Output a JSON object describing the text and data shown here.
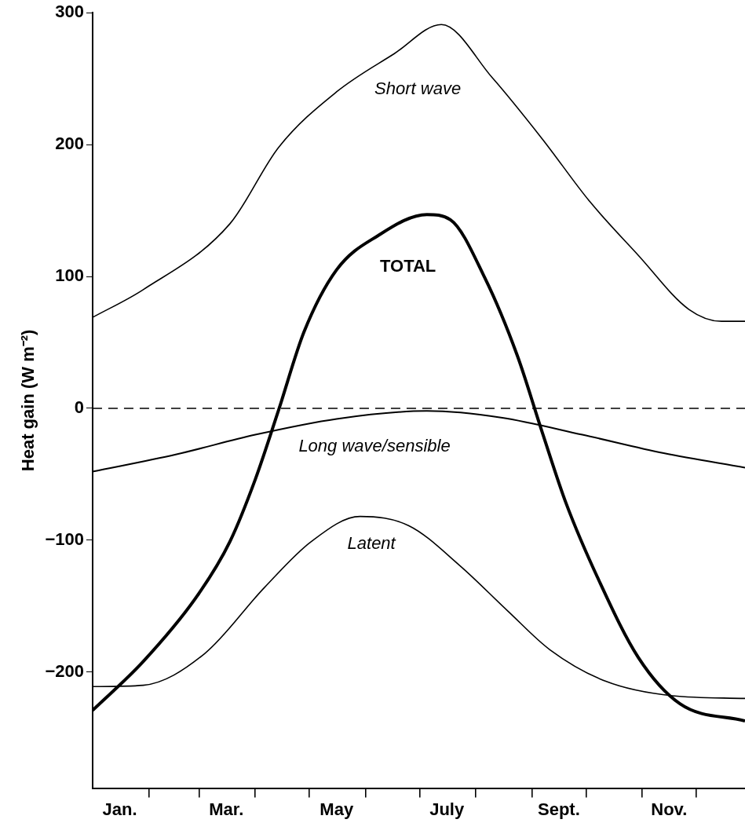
{
  "chart_data": {
    "type": "line",
    "ylabel": "Heat gain (W m⁻²)",
    "marker": "none",
    "grid": false,
    "legend": false,
    "xlim": [
      "--01-01",
      "--12-28"
    ],
    "xticks": [
      {
        "value": "--01-16",
        "label": "Jan."
      },
      {
        "value": "--02-01",
        "label": null
      },
      {
        "value": "--03-01",
        "label": null
      },
      {
        "value": "--03-16",
        "label": "Mar."
      },
      {
        "value": "--04-01",
        "label": null
      },
      {
        "value": "--05-01",
        "label": null
      },
      {
        "value": "--05-16",
        "label": "May"
      },
      {
        "value": "--06-01",
        "label": null
      },
      {
        "value": "--07-01",
        "label": null
      },
      {
        "value": "--07-16",
        "label": "July"
      },
      {
        "value": "--08-01",
        "label": null
      },
      {
        "value": "--09-01",
        "label": null
      },
      {
        "value": "--09-16",
        "label": "Sept."
      },
      {
        "value": "--10-01",
        "label": null
      },
      {
        "value": "--11-01",
        "label": null
      },
      {
        "value": "--11-16",
        "label": "Nov."
      },
      {
        "value": "--12-01",
        "label": null
      }
    ],
    "ylim": [
      -288,
      300
    ],
    "yticks": [
      {
        "value": -200,
        "label": "−200"
      },
      {
        "value": -100,
        "label": "−100"
      },
      0,
      100,
      200,
      300
    ],
    "ref_lines": [
      {
        "axis": "y",
        "value": 0,
        "line_style": "dashed",
        "color": "#000000"
      }
    ],
    "series": [
      {
        "name": "Short wave",
        "color": "#000000",
        "x": [
          "--01-01",
          "--01-29",
          "--03-18",
          "--04-14",
          "--05-16",
          "--06-17",
          "--07-13",
          "--08-10",
          "--09-07",
          "--10-03",
          "--10-30",
          "--11-27",
          "--12-15",
          "--12-28"
        ],
        "values": [
          69,
          90,
          140,
          198,
          240,
          269,
          291,
          251,
          204,
          157,
          116,
          75,
          66,
          66
        ]
      },
      {
        "name": "TOTAL",
        "color": "#000000",
        "x": [
          "--01-01",
          "--01-29",
          "--02-28",
          "--03-18",
          "--04-01",
          "--04-14",
          "--04-28",
          "--05-16",
          "--06-08",
          "--07-05",
          "--07-18",
          "--08-06",
          "--08-24",
          "--09-07",
          "--09-20",
          "--10-08",
          "--10-30",
          "--11-22",
          "--12-28"
        ],
        "values": [
          -229,
          -192,
          -142,
          -101,
          -54,
          -1,
          58,
          105,
          131,
          147,
          143,
          99,
          40,
          -19,
          -72,
          -130,
          -189,
          -224,
          -237
        ]
      },
      {
        "name": "Long wave/sensible",
        "color": "#000000",
        "x": [
          "--01-01",
          "--02-16",
          "--04-01",
          "--05-16",
          "--07-05",
          "--08-15",
          "--09-29",
          "--11-13",
          "--12-28"
        ],
        "values": [
          -48,
          -35,
          -20,
          -8,
          -2,
          -7,
          -20,
          -34,
          -45
        ]
      },
      {
        "name": "Latent",
        "color": "#000000",
        "x": [
          "--01-01",
          "--01-29",
          "--03-04",
          "--04-06",
          "--05-02",
          "--05-29",
          "--06-25",
          "--07-23",
          "--08-19",
          "--09-11",
          "--10-12",
          "--11-18",
          "--12-28"
        ],
        "values": [
          -211,
          -210,
          -186,
          -136,
          -101,
          -82,
          -89,
          -119,
          -154,
          -183,
          -207,
          -218,
          -220
        ]
      }
    ]
  }
}
